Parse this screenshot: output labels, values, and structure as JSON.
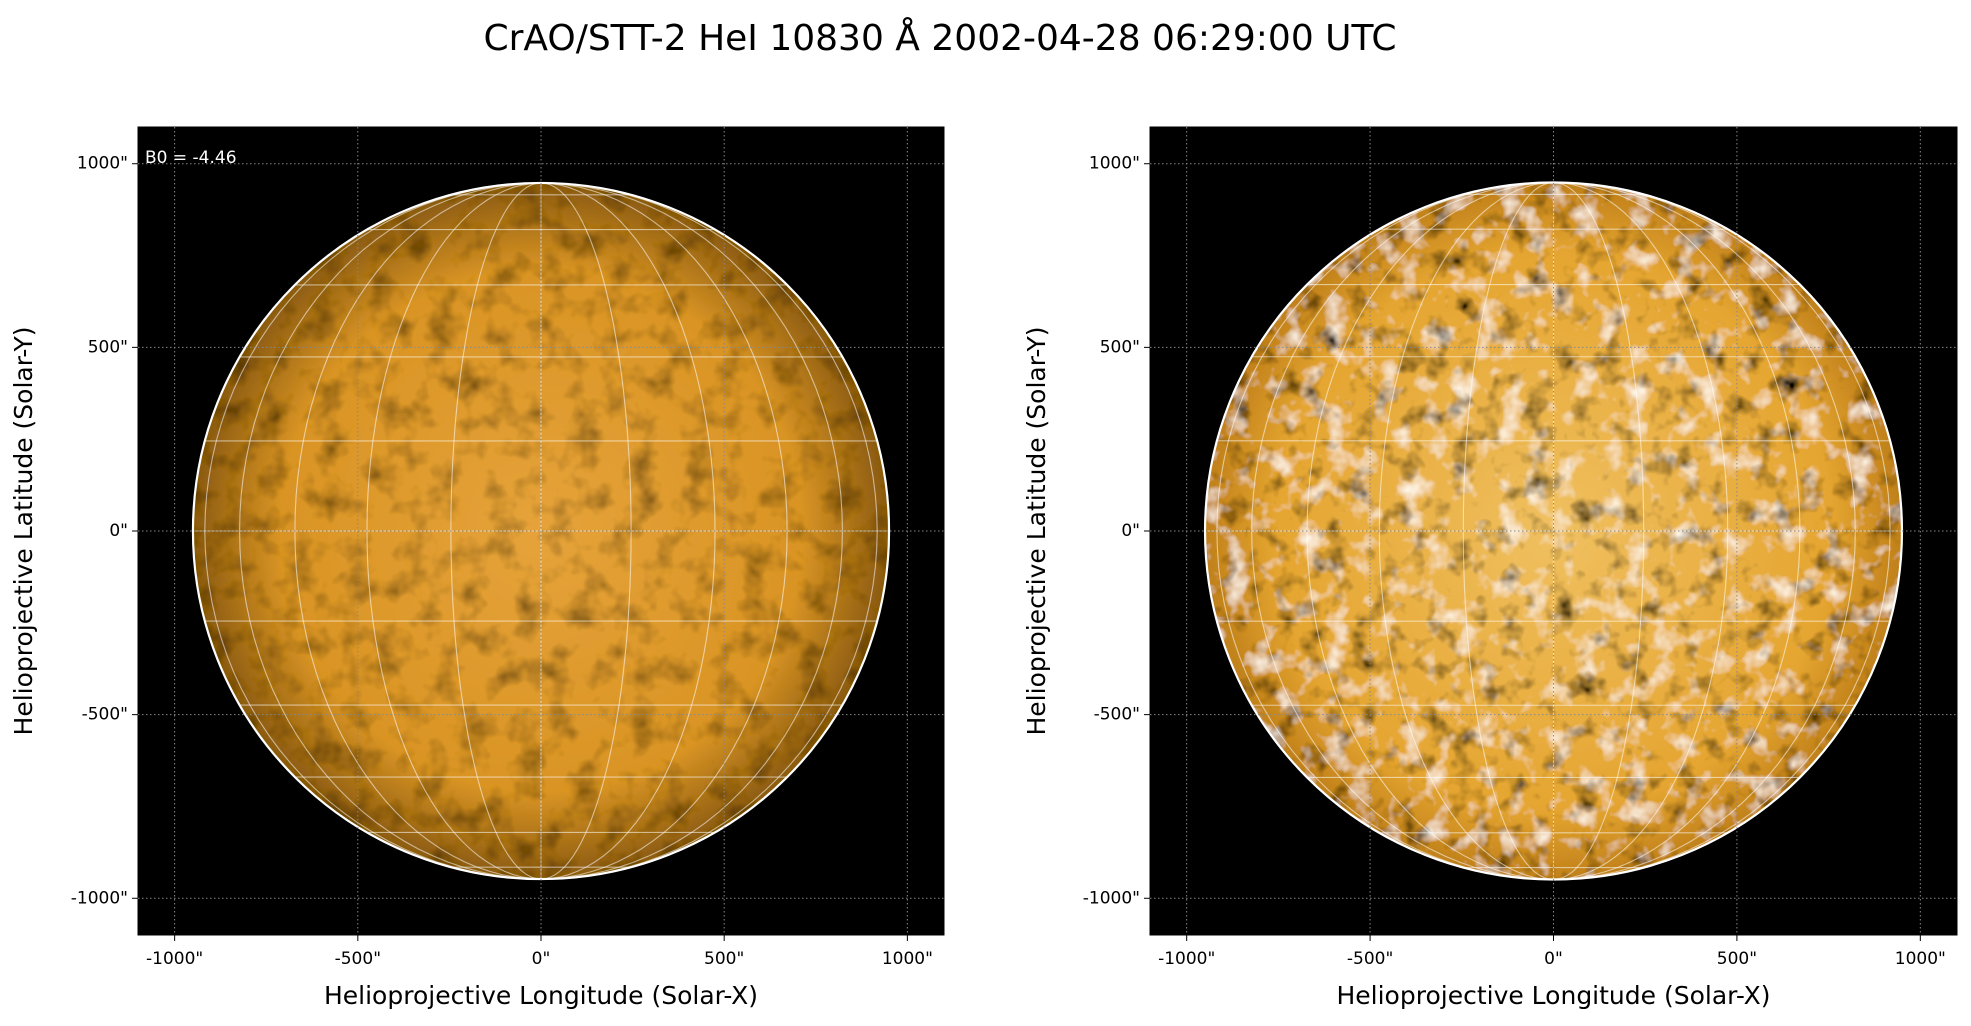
{
  "title": "CrAO/STT-2 HeI 10830 Å 2002-04-28 06:29:00 UTC",
  "chart_data": [
    {
      "type": "image",
      "xlabel": "Helioprojective Longitude (Solar-X)",
      "ylabel": "Helioprojective Latitude (Solar-Y)",
      "annotation": "B0 = -4.46",
      "contrast": "normal",
      "xlim": [
        -1100,
        1100
      ],
      "ylim": [
        -1100,
        1100
      ],
      "disk_radius": 950,
      "grid": true,
      "xticks": [
        {
          "value": -1000,
          "label": "-1000\""
        },
        {
          "value": -500,
          "label": "-500\""
        },
        {
          "value": 0,
          "label": "0\""
        },
        {
          "value": 500,
          "label": "500\""
        },
        {
          "value": 1000,
          "label": "1000\""
        }
      ],
      "yticks": [
        {
          "value": -1000,
          "label": "-1000\""
        },
        {
          "value": -500,
          "label": "-500\""
        },
        {
          "value": 0,
          "label": "0\""
        },
        {
          "value": 500,
          "label": "500\""
        },
        {
          "value": 1000,
          "label": "1000\""
        }
      ]
    },
    {
      "type": "image",
      "xlabel": "Helioprojective Longitude (Solar-X)",
      "ylabel": "Helioprojective Latitude (Solar-Y)",
      "contrast": "high",
      "xlim": [
        -1100,
        1100
      ],
      "ylim": [
        -1100,
        1100
      ],
      "disk_radius": 950,
      "grid": true,
      "xticks": [
        {
          "value": -1000,
          "label": "-1000\""
        },
        {
          "value": -500,
          "label": "-500\""
        },
        {
          "value": 0,
          "label": "0\""
        },
        {
          "value": 500,
          "label": "500\""
        },
        {
          "value": 1000,
          "label": "1000\""
        }
      ],
      "yticks": [
        {
          "value": -1000,
          "label": "-1000\""
        },
        {
          "value": -500,
          "label": "-500\""
        },
        {
          "value": 0,
          "label": "0\""
        },
        {
          "value": 500,
          "label": "500\""
        },
        {
          "value": 1000,
          "label": "1000\""
        }
      ]
    }
  ]
}
